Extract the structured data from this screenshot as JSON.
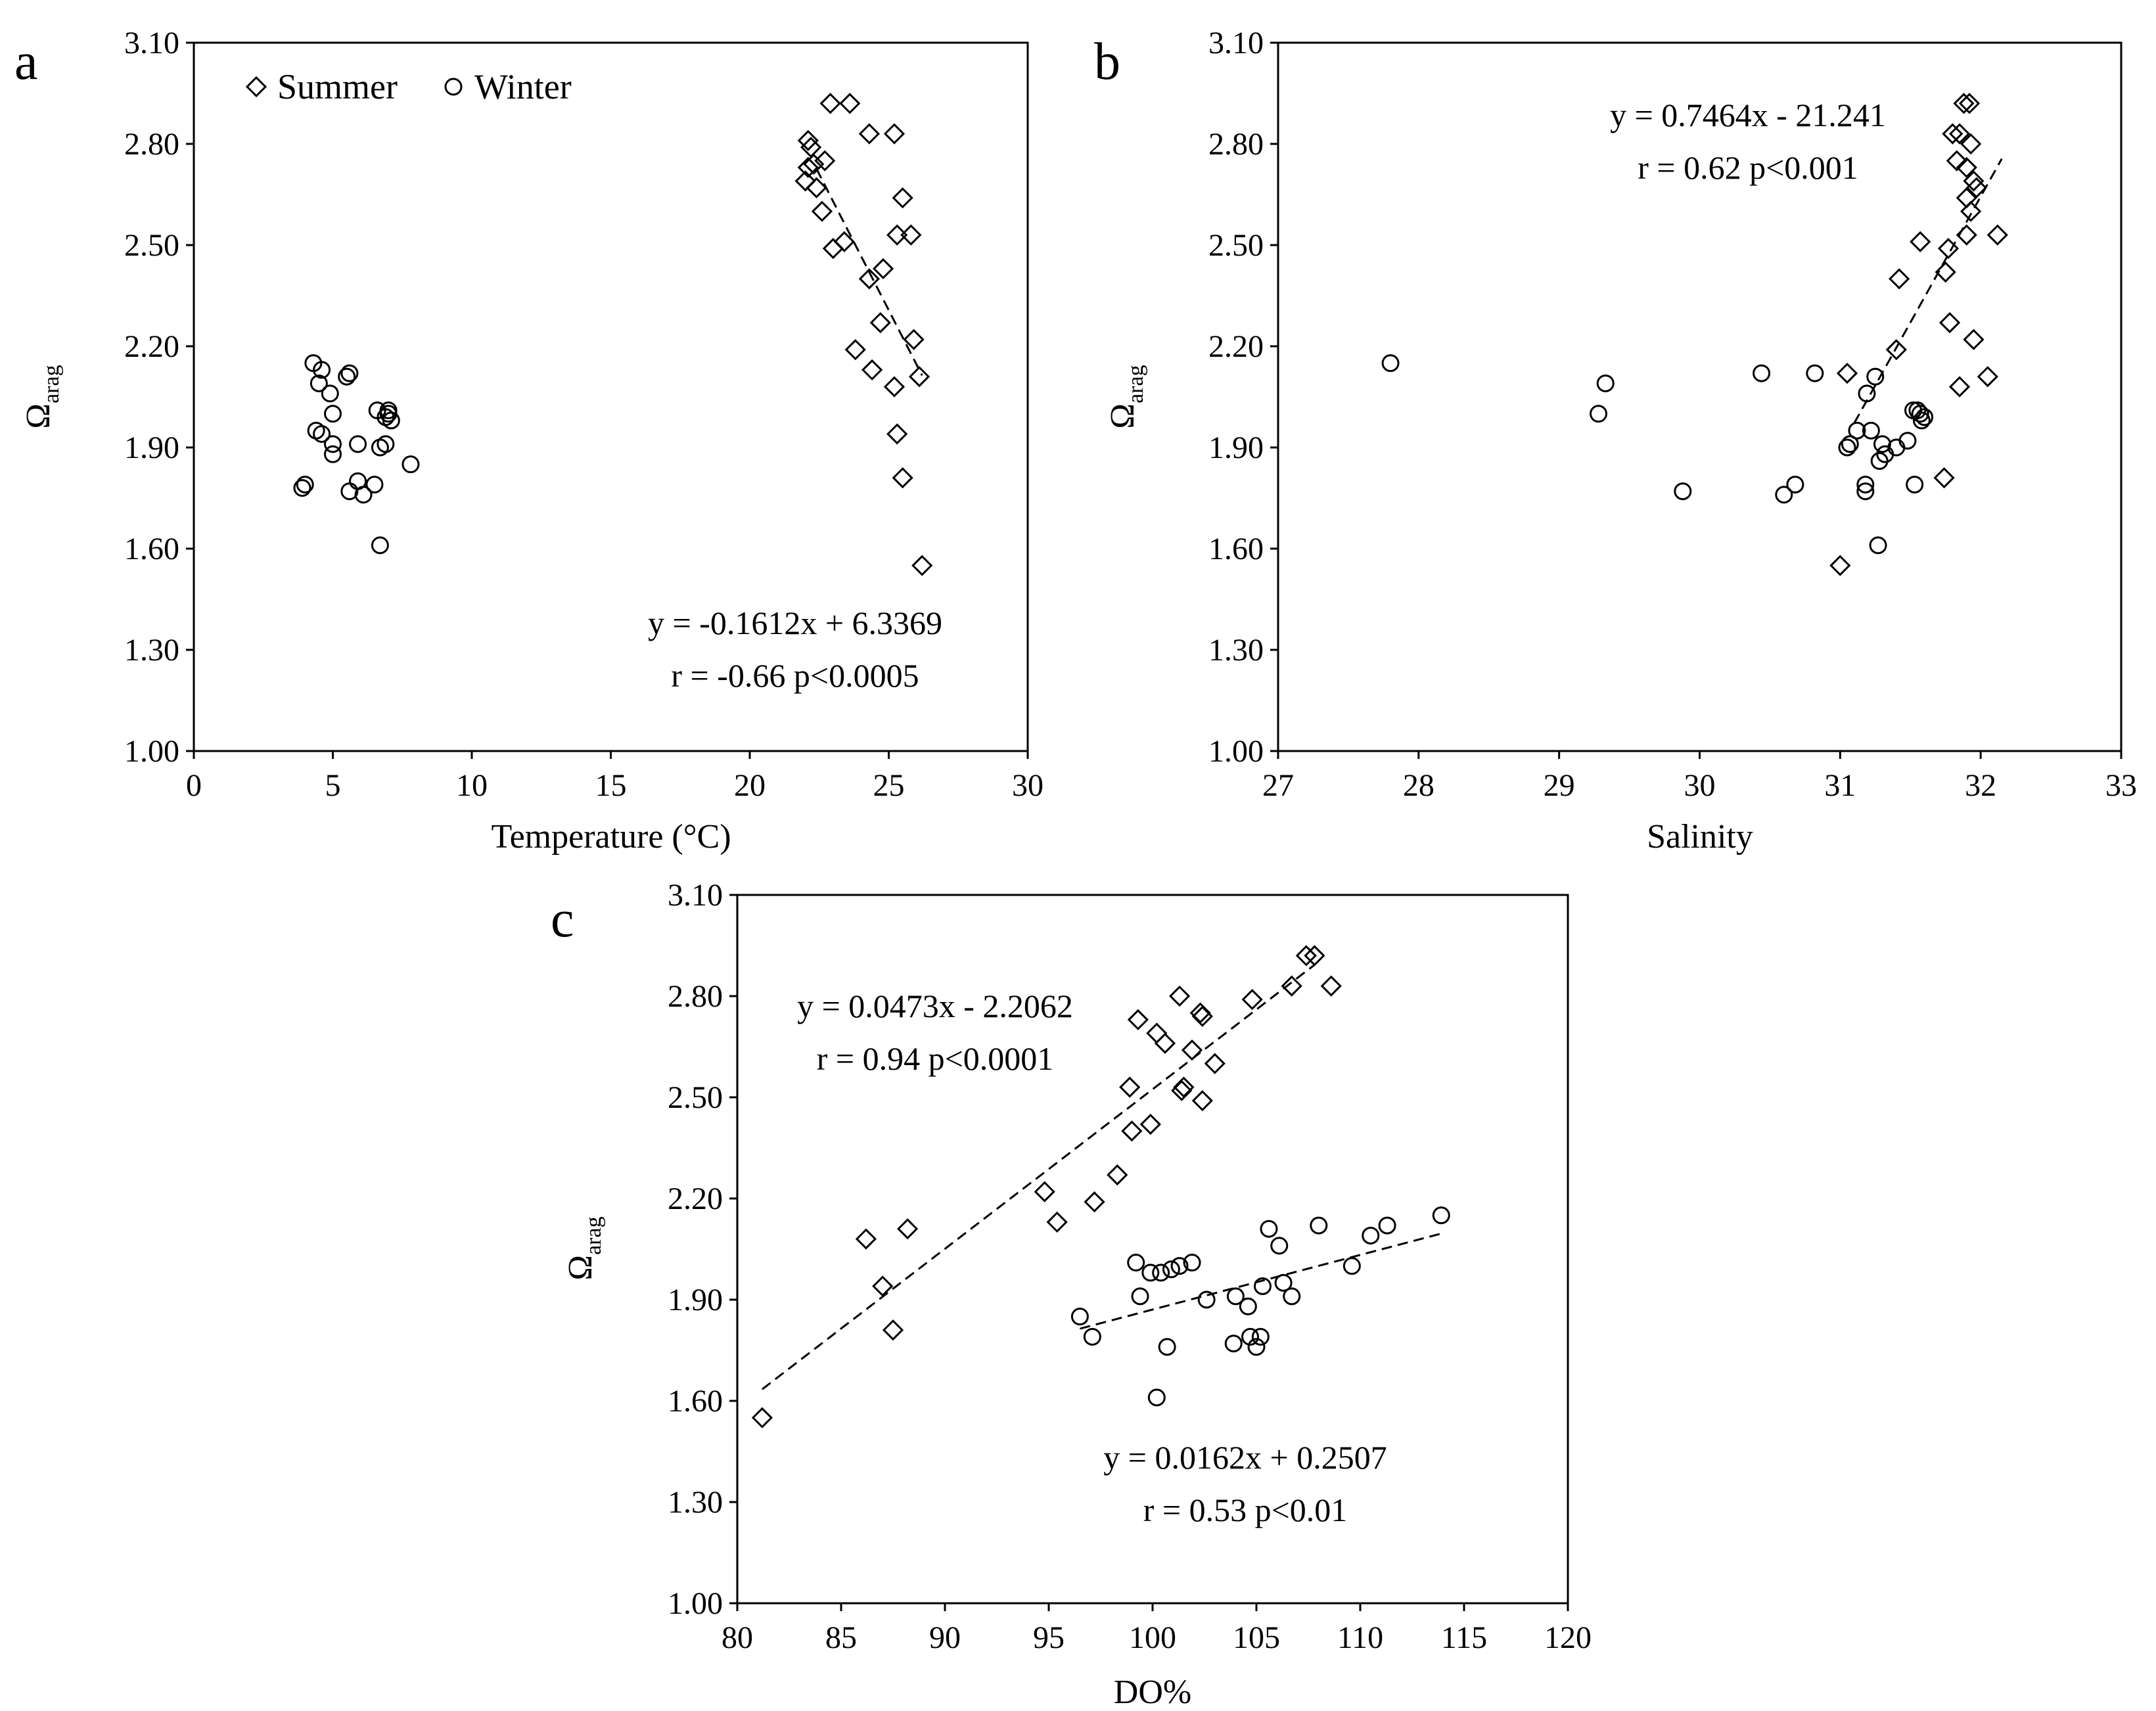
{
  "chart_data": [
    {
      "panel": "a",
      "type": "scatter",
      "xlabel": "Temperature (°C)",
      "ylabel": "Ω",
      "ylabel_sub": "arag",
      "xlim": [
        0,
        30
      ],
      "ylim": [
        1.0,
        3.1
      ],
      "xticks": [
        "0",
        "5",
        "10",
        "15",
        "20",
        "25",
        "30"
      ],
      "yticks": [
        "1.00",
        "1.30",
        "1.60",
        "1.90",
        "2.20",
        "2.50",
        "2.80",
        "3.10"
      ],
      "legend": [
        {
          "name": "Summer",
          "marker": "diamond"
        },
        {
          "name": "Winter",
          "marker": "circle"
        }
      ],
      "annotations": [
        "y = -0.1612x + 6.3369",
        "r = -0.66  p<0.0005"
      ],
      "trendlines": [
        {
          "series": "Summer",
          "slope": -0.1612,
          "intercept": 6.3369,
          "x_range": [
            22.4,
            26.2
          ]
        }
      ],
      "series": [
        {
          "name": "Summer",
          "marker": "diamond",
          "points": [
            [
              22.1,
              2.81
            ],
            [
              22.2,
              2.79
            ],
            [
              22.0,
              2.69
            ],
            [
              22.1,
              2.73
            ],
            [
              22.3,
              2.74
            ],
            [
              22.7,
              2.75
            ],
            [
              22.9,
              2.92
            ],
            [
              23.6,
              2.92
            ],
            [
              22.4,
              2.67
            ],
            [
              22.6,
              2.6
            ],
            [
              23.4,
              2.51
            ],
            [
              23.0,
              2.49
            ],
            [
              24.3,
              2.83
            ],
            [
              25.2,
              2.83
            ],
            [
              25.5,
              2.64
            ],
            [
              25.3,
              2.53
            ],
            [
              25.8,
              2.53
            ],
            [
              24.8,
              2.43
            ],
            [
              24.3,
              2.4
            ],
            [
              24.7,
              2.27
            ],
            [
              23.8,
              2.19
            ],
            [
              24.4,
              2.13
            ],
            [
              25.9,
              2.22
            ],
            [
              26.1,
              2.11
            ],
            [
              25.2,
              2.08
            ],
            [
              25.3,
              1.94
            ],
            [
              25.5,
              1.81
            ],
            [
              26.2,
              1.55
            ]
          ]
        },
        {
          "name": "Winter",
          "marker": "circle",
          "points": [
            [
              4.3,
              2.15
            ],
            [
              4.6,
              2.13
            ],
            [
              4.5,
              2.09
            ],
            [
              5.5,
              2.11
            ],
            [
              5.6,
              2.12
            ],
            [
              4.9,
              2.06
            ],
            [
              5.0,
              2.0
            ],
            [
              6.6,
              2.01
            ],
            [
              6.9,
              1.99
            ],
            [
              7.0,
              2.0
            ],
            [
              7.1,
              1.98
            ],
            [
              7.0,
              2.01
            ],
            [
              4.4,
              1.95
            ],
            [
              4.6,
              1.94
            ],
            [
              5.0,
              1.91
            ],
            [
              5.9,
              1.91
            ],
            [
              6.7,
              1.9
            ],
            [
              6.9,
              1.91
            ],
            [
              5.0,
              1.88
            ],
            [
              7.8,
              1.85
            ],
            [
              3.9,
              1.78
            ],
            [
              4.0,
              1.79
            ],
            [
              5.6,
              1.77
            ],
            [
              5.9,
              1.8
            ],
            [
              6.1,
              1.76
            ],
            [
              6.5,
              1.79
            ],
            [
              6.7,
              1.61
            ]
          ]
        }
      ]
    },
    {
      "panel": "b",
      "type": "scatter",
      "xlabel": "Salinity",
      "ylabel": "Ω",
      "ylabel_sub": "arag",
      "xlim": [
        27,
        33
      ],
      "ylim": [
        1.0,
        3.1
      ],
      "xticks": [
        "27",
        "28",
        "29",
        "30",
        "31",
        "32",
        "33"
      ],
      "yticks": [
        "1.00",
        "1.30",
        "1.60",
        "1.90",
        "2.20",
        "2.50",
        "2.80",
        "3.10"
      ],
      "annotations": [
        "y = 0.7464x - 21.241",
        "r = 0.62   p<0.001"
      ],
      "trendlines": [
        {
          "series": "All",
          "slope": 0.7464,
          "intercept": -21.241,
          "x_range": [
            31.1,
            32.15
          ]
        }
      ],
      "series": [
        {
          "name": "Summer",
          "marker": "diamond",
          "points": [
            [
              31.88,
              2.92
            ],
            [
              31.92,
              2.92
            ],
            [
              31.8,
              2.83
            ],
            [
              31.85,
              2.83
            ],
            [
              31.93,
              2.8
            ],
            [
              31.83,
              2.75
            ],
            [
              31.9,
              2.73
            ],
            [
              31.97,
              2.67
            ],
            [
              31.95,
              2.69
            ],
            [
              31.9,
              2.64
            ],
            [
              31.93,
              2.6
            ],
            [
              31.57,
              2.51
            ],
            [
              31.77,
              2.49
            ],
            [
              31.9,
              2.53
            ],
            [
              32.12,
              2.53
            ],
            [
              31.42,
              2.4
            ],
            [
              31.75,
              2.42
            ],
            [
              31.78,
              2.27
            ],
            [
              31.4,
              2.19
            ],
            [
              31.05,
              2.12
            ],
            [
              31.95,
              2.22
            ],
            [
              32.05,
              2.11
            ],
            [
              31.85,
              2.08
            ],
            [
              31.74,
              1.81
            ],
            [
              31.0,
              1.55
            ]
          ]
        },
        {
          "name": "Winter",
          "marker": "circle",
          "points": [
            [
              27.8,
              2.15
            ],
            [
              29.33,
              2.09
            ],
            [
              29.28,
              2.0
            ],
            [
              30.44,
              2.12
            ],
            [
              30.82,
              2.12
            ],
            [
              31.25,
              2.11
            ],
            [
              31.19,
              2.06
            ],
            [
              31.12,
              1.95
            ],
            [
              31.22,
              1.95
            ],
            [
              31.05,
              1.9
            ],
            [
              31.07,
              1.91
            ],
            [
              31.3,
              1.91
            ],
            [
              31.4,
              1.9
            ],
            [
              31.48,
              1.92
            ],
            [
              31.55,
              2.01
            ],
            [
              31.57,
              2.0
            ],
            [
              31.58,
              1.98
            ],
            [
              31.52,
              2.01
            ],
            [
              31.6,
              1.99
            ],
            [
              31.32,
              1.88
            ],
            [
              31.28,
              1.86
            ],
            [
              29.88,
              1.77
            ],
            [
              30.6,
              1.76
            ],
            [
              30.68,
              1.79
            ],
            [
              31.18,
              1.79
            ],
            [
              31.18,
              1.77
            ],
            [
              31.53,
              1.79
            ],
            [
              31.27,
              1.61
            ]
          ]
        }
      ]
    },
    {
      "panel": "c",
      "type": "scatter",
      "xlabel": "DO%",
      "ylabel": "Ω",
      "ylabel_sub": "arag",
      "xlim": [
        80,
        120
      ],
      "ylim": [
        1.0,
        3.1
      ],
      "xticks": [
        "80",
        "85",
        "90",
        "95",
        "100",
        "105",
        "110",
        "115",
        "120"
      ],
      "yticks": [
        "1.00",
        "1.30",
        "1.60",
        "1.90",
        "2.20",
        "2.50",
        "2.80",
        "3.10"
      ],
      "annotations": [
        "y = 0.0473x - 2.2062",
        "r = 0.94  p<0.0001",
        "y = 0.0162x + 0.2507",
        "r = 0.53  p<0.01"
      ],
      "trendlines": [
        {
          "series": "Summer",
          "slope": 0.0473,
          "intercept": -2.2062,
          "x_range": [
            81.2,
            107.8
          ]
        },
        {
          "series": "Winter",
          "slope": 0.0162,
          "intercept": 0.2507,
          "x_range": [
            96.5,
            114.0
          ]
        }
      ],
      "series": [
        {
          "name": "Summer",
          "marker": "diamond",
          "points": [
            [
              107.4,
              2.92
            ],
            [
              107.8,
              2.92
            ],
            [
              106.7,
              2.83
            ],
            [
              108.6,
              2.83
            ],
            [
              101.3,
              2.8
            ],
            [
              104.8,
              2.79
            ],
            [
              99.3,
              2.73
            ],
            [
              100.2,
              2.69
            ],
            [
              100.6,
              2.66
            ],
            [
              101.9,
              2.64
            ],
            [
              102.3,
              2.75
            ],
            [
              102.4,
              2.74
            ],
            [
              103.0,
              2.6
            ],
            [
              98.9,
              2.53
            ],
            [
              101.4,
              2.52
            ],
            [
              101.5,
              2.53
            ],
            [
              102.4,
              2.49
            ],
            [
              99.0,
              2.4
            ],
            [
              99.9,
              2.42
            ],
            [
              98.3,
              2.27
            ],
            [
              94.8,
              2.22
            ],
            [
              97.2,
              2.19
            ],
            [
              95.4,
              2.13
            ],
            [
              86.2,
              2.08
            ],
            [
              88.2,
              2.11
            ],
            [
              87.0,
              1.94
            ],
            [
              87.5,
              1.81
            ],
            [
              81.2,
              1.55
            ]
          ]
        },
        {
          "name": "Winter",
          "marker": "circle",
          "points": [
            [
              113.9,
              2.15
            ],
            [
              111.3,
              2.12
            ],
            [
              110.5,
              2.09
            ],
            [
              108.0,
              2.12
            ],
            [
              105.6,
              2.11
            ],
            [
              106.1,
              2.06
            ],
            [
              109.6,
              2.0
            ],
            [
              99.2,
              2.01
            ],
            [
              99.9,
              1.98
            ],
            [
              100.4,
              1.98
            ],
            [
              100.9,
              1.99
            ],
            [
              101.3,
              2.0
            ],
            [
              101.9,
              2.01
            ],
            [
              99.4,
              1.91
            ],
            [
              102.6,
              1.9
            ],
            [
              104.0,
              1.91
            ],
            [
              104.6,
              1.88
            ],
            [
              105.3,
              1.94
            ],
            [
              106.3,
              1.95
            ],
            [
              106.7,
              1.91
            ],
            [
              96.5,
              1.85
            ],
            [
              97.1,
              1.79
            ],
            [
              103.9,
              1.77
            ],
            [
              104.7,
              1.79
            ],
            [
              105.0,
              1.76
            ],
            [
              105.2,
              1.79
            ],
            [
              100.7,
              1.76
            ],
            [
              100.2,
              1.61
            ]
          ]
        }
      ]
    }
  ]
}
